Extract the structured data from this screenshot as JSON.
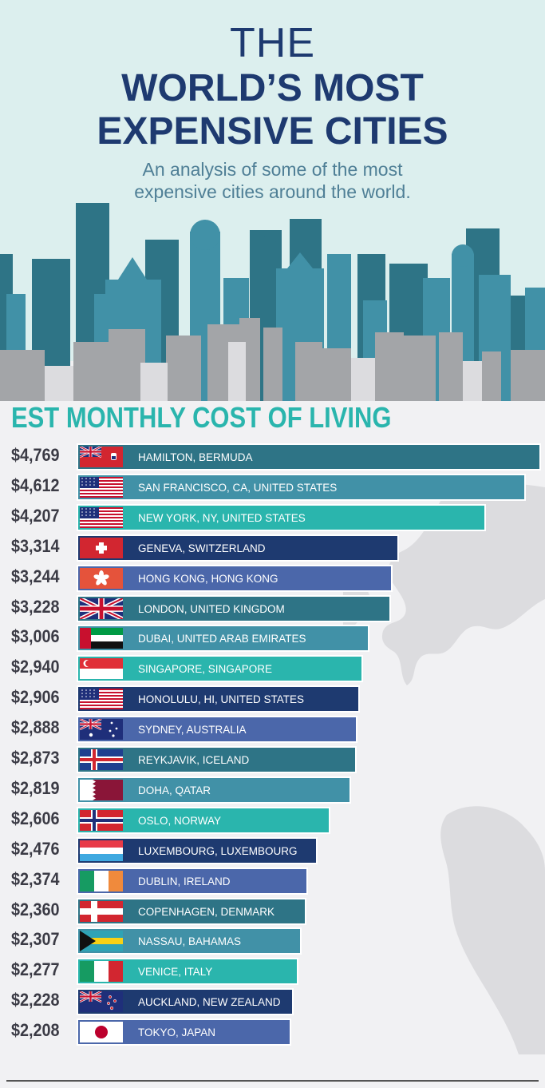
{
  "title": {
    "line1": "THE",
    "line2": "WORLD’S MOST",
    "line3": "EXPENSIVE CITIES",
    "subtitle_line1": "An analysis of some of the most",
    "subtitle_line2": "expensive cities around the world."
  },
  "colors": {
    "navy": "#1e3a70",
    "teal_dark": "#2e7486",
    "teal_mid": "#4191a7",
    "teal_bright": "#2ab5ad",
    "periwinkle": "#4b67aa",
    "heading": "#2ab5ad"
  },
  "chart_data": {
    "type": "bar",
    "orientation": "horizontal",
    "title": "EST MONTHLY COST OF LIVING",
    "unit": "$",
    "categories": [
      "HAMILTON, BERMUDA",
      "SAN FRANCISCO, CA, UNITED STATES",
      "NEW YORK, NY, UNITED STATES",
      "GENEVA, SWITZERLAND",
      "HONG KONG, HONG KONG",
      "LONDON, UNITED KINGDOM",
      "DUBAI, UNITED ARAB EMIRATES",
      "SINGAPORE, SINGAPORE",
      "HONOLULU, HI, UNITED STATES",
      "SYDNEY, AUSTRALIA",
      "REYKJAVIK, ICELAND",
      "DOHA, QATAR",
      "OSLO, NORWAY",
      "LUXEMBOURG, LUXEMBOURG",
      "DUBLIN, IRELAND",
      "COPENHAGEN, DENMARK",
      "NASSAU, BAHAMAS",
      "VENICE, ITALY",
      "AUCKLAND, NEW ZEALAND",
      "TOKYO, JAPAN"
    ],
    "values": [
      4769,
      4612,
      4207,
      3314,
      3244,
      3228,
      3006,
      2940,
      2906,
      2888,
      2873,
      2819,
      2606,
      2476,
      2374,
      2360,
      2307,
      2277,
      2228,
      2208
    ],
    "value_labels": [
      "$4,769",
      "$4,612",
      "$4,207",
      "$3,314",
      "$3,244",
      "$3,228",
      "$3,006",
      "$2,940",
      "$2,906",
      "$2,888",
      "$2,873",
      "$2,819",
      "$2,606",
      "$2,476",
      "$2,374",
      "$2,360",
      "$2,307",
      "$2,277",
      "$2,228",
      "$2,208"
    ],
    "flags": [
      "bermuda",
      "usa",
      "usa",
      "switzerland",
      "hongkong",
      "uk",
      "uae",
      "singapore",
      "usa",
      "australia",
      "iceland",
      "qatar",
      "norway",
      "luxembourg",
      "ireland",
      "denmark",
      "bahamas",
      "italy",
      "newzealand",
      "japan"
    ],
    "bar_colors": [
      "#2e7486",
      "#4191a7",
      "#2ab5ad",
      "#1e3a70",
      "#4b67aa",
      "#2e7486",
      "#4191a7",
      "#2ab5ad",
      "#1e3a70",
      "#4b67aa",
      "#2e7486",
      "#4191a7",
      "#2ab5ad",
      "#1e3a70",
      "#4b67aa",
      "#2e7486",
      "#4191a7",
      "#2ab5ad",
      "#1e3a70",
      "#4b67aa"
    ]
  }
}
